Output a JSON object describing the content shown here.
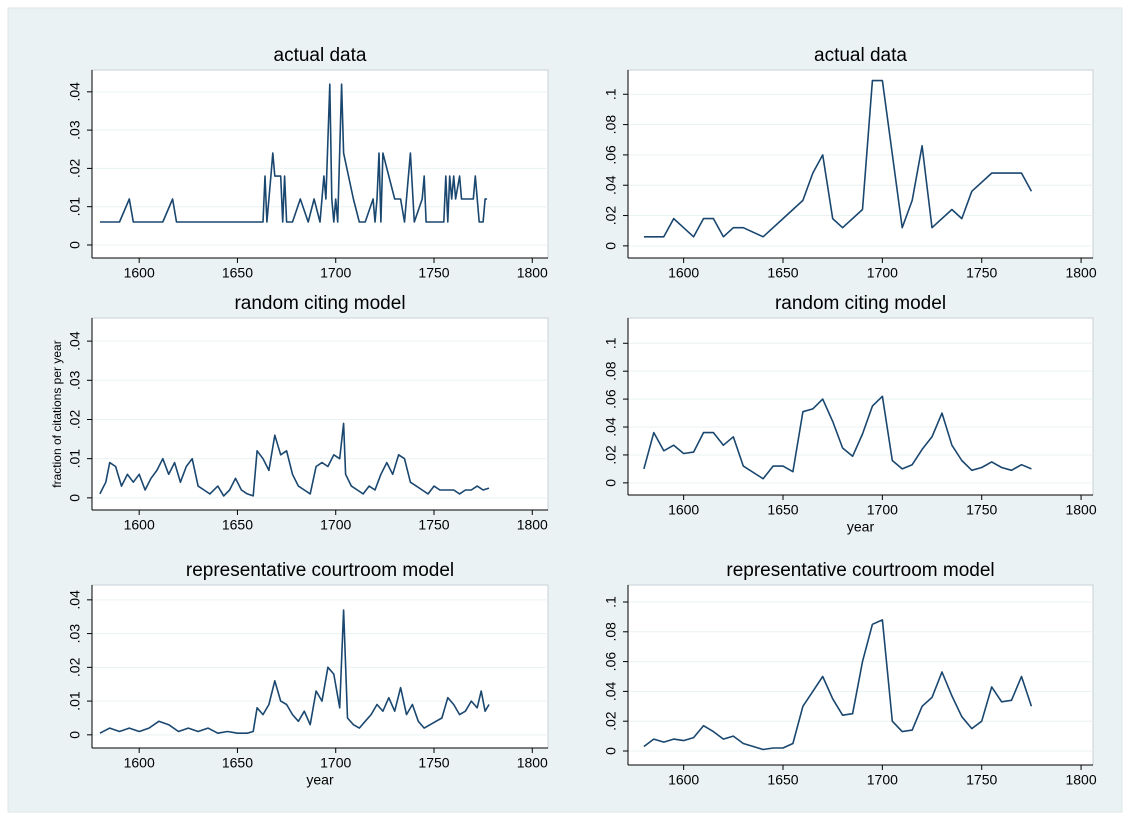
{
  "chart_data": [
    {
      "type": "line",
      "title": "actual data",
      "color": "#1a476f",
      "grid": true,
      "x": [
        1580,
        1590,
        1595,
        1597,
        1612,
        1617,
        1619,
        1663,
        1664,
        1665,
        1667,
        1668,
        1669,
        1672,
        1673,
        1674,
        1675,
        1678,
        1682,
        1686,
        1689,
        1692,
        1694,
        1695,
        1697,
        1698,
        1699,
        1700,
        1701,
        1703,
        1704,
        1709,
        1712,
        1715,
        1719,
        1720,
        1721,
        1722,
        1723,
        1724,
        1730,
        1733,
        1735,
        1738,
        1740,
        1744,
        1745,
        1746,
        1755,
        1756,
        1757,
        1758,
        1759,
        1760,
        1761,
        1763,
        1764,
        1770,
        1771,
        1773,
        1775,
        1776,
        1777
      ],
      "values": [
        0.006,
        0.006,
        0.012,
        0.006,
        0.006,
        0.012,
        0.006,
        0.006,
        0.018,
        0.006,
        0.018,
        0.024,
        0.018,
        0.018,
        0.006,
        0.018,
        0.006,
        0.006,
        0.012,
        0.006,
        0.012,
        0.006,
        0.018,
        0.012,
        0.042,
        0.012,
        0.006,
        0.012,
        0.006,
        0.042,
        0.024,
        0.012,
        0.006,
        0.006,
        0.012,
        0.006,
        0.012,
        0.024,
        0.006,
        0.024,
        0.012,
        0.012,
        0.006,
        0.024,
        0.006,
        0.012,
        0.018,
        0.006,
        0.006,
        0.018,
        0.006,
        0.018,
        0.012,
        0.018,
        0.012,
        0.018,
        0.012,
        0.012,
        0.018,
        0.006,
        0.006,
        0.012,
        0.012
      ],
      "xlim": [
        1576,
        1808
      ],
      "ylim": [
        -0.0034,
        0.0457
      ],
      "xticks": [
        1600,
        1650,
        1700,
        1750,
        1800
      ],
      "yticks": [
        0,
        {
          "value": 0.01,
          "label": ".01"
        },
        {
          "value": 0.02,
          "label": ".02"
        },
        {
          "value": 0.03,
          "label": ".03"
        },
        {
          "value": 0.04,
          "label": ".04"
        }
      ]
    },
    {
      "type": "line",
      "title": "actual data",
      "color": "#1a476f",
      "grid": true,
      "x": [
        1580,
        1585,
        1590,
        1595,
        1600,
        1605,
        1610,
        1615,
        1620,
        1625,
        1630,
        1640,
        1650,
        1660,
        1665,
        1670,
        1675,
        1680,
        1690,
        1695,
        1700,
        1710,
        1715,
        1720,
        1725,
        1735,
        1740,
        1745,
        1755,
        1770,
        1775
      ],
      "values": [
        0.006,
        0.006,
        0.006,
        0.018,
        0.012,
        0.006,
        0.018,
        0.018,
        0.006,
        0.012,
        0.012,
        0.006,
        0.018,
        0.03,
        0.048,
        0.06,
        0.018,
        0.012,
        0.024,
        0.109,
        0.109,
        0.012,
        0.03,
        0.066,
        0.012,
        0.024,
        0.018,
        0.036,
        0.048,
        0.048,
        0.036
      ],
      "xlim": [
        1572,
        1806
      ],
      "ylim": [
        -0.008,
        0.116
      ],
      "xticks": [
        1600,
        1650,
        1700,
        1750,
        1800
      ],
      "yticks": [
        0,
        {
          "value": 0.02,
          "label": ".02"
        },
        {
          "value": 0.04,
          "label": ".04"
        },
        {
          "value": 0.06,
          "label": ".06"
        },
        {
          "value": 0.08,
          "label": ".08"
        },
        {
          "value": 0.1,
          "label": ".1"
        }
      ]
    },
    {
      "type": "line",
      "title": "random citing model",
      "ylabel": "fraction of citations per year",
      "color": "#1a476f",
      "grid": true,
      "x": [
        1580,
        1583,
        1585,
        1588,
        1591,
        1594,
        1597,
        1600,
        1603,
        1606,
        1609,
        1612,
        1615,
        1618,
        1621,
        1624,
        1627,
        1630,
        1633,
        1636,
        1640,
        1643,
        1646,
        1649,
        1652,
        1655,
        1658,
        1660,
        1663,
        1666,
        1669,
        1672,
        1675,
        1678,
        1681,
        1684,
        1687,
        1690,
        1693,
        1696,
        1699,
        1702,
        1704,
        1705,
        1708,
        1711,
        1714,
        1717,
        1720,
        1723,
        1726,
        1729,
        1732,
        1735,
        1738,
        1741,
        1744,
        1747,
        1750,
        1753,
        1756,
        1760,
        1763,
        1766,
        1769,
        1772,
        1775,
        1778
      ],
      "values": [
        0.001,
        0.004,
        0.009,
        0.008,
        0.003,
        0.006,
        0.004,
        0.006,
        0.002,
        0.005,
        0.007,
        0.01,
        0.006,
        0.009,
        0.004,
        0.008,
        0.01,
        0.003,
        0.002,
        0.001,
        0.003,
        0.0005,
        0.002,
        0.005,
        0.002,
        0.001,
        0.0005,
        0.012,
        0.01,
        0.007,
        0.016,
        0.011,
        0.012,
        0.006,
        0.003,
        0.002,
        0.001,
        0.008,
        0.009,
        0.008,
        0.011,
        0.01,
        0.019,
        0.006,
        0.003,
        0.002,
        0.001,
        0.003,
        0.002,
        0.006,
        0.009,
        0.006,
        0.011,
        0.01,
        0.004,
        0.003,
        0.002,
        0.001,
        0.003,
        0.002,
        0.002,
        0.002,
        0.001,
        0.002,
        0.002,
        0.003,
        0.002,
        0.0025
      ],
      "xlim": [
        1576,
        1808
      ],
      "ylim": [
        -0.0031,
        0.0459
      ],
      "xticks": [
        1600,
        1650,
        1700,
        1750,
        1800
      ],
      "yticks": [
        0,
        {
          "value": 0.01,
          "label": ".01"
        },
        {
          "value": 0.02,
          "label": ".02"
        },
        {
          "value": 0.03,
          "label": ".03"
        },
        {
          "value": 0.04,
          "label": ".04"
        }
      ]
    },
    {
      "type": "line",
      "title": "random citing model",
      "xlabel": "year",
      "color": "#1a476f",
      "grid": true,
      "x": [
        1580,
        1585,
        1590,
        1595,
        1600,
        1605,
        1610,
        1615,
        1620,
        1625,
        1630,
        1640,
        1645,
        1650,
        1655,
        1660,
        1665,
        1670,
        1675,
        1680,
        1685,
        1690,
        1695,
        1700,
        1705,
        1710,
        1715,
        1720,
        1725,
        1730,
        1735,
        1740,
        1745,
        1750,
        1755,
        1760,
        1765,
        1770,
        1775
      ],
      "values": [
        0.01,
        0.036,
        0.023,
        0.027,
        0.021,
        0.022,
        0.036,
        0.036,
        0.027,
        0.033,
        0.012,
        0.003,
        0.012,
        0.012,
        0.008,
        0.051,
        0.053,
        0.06,
        0.044,
        0.025,
        0.019,
        0.035,
        0.055,
        0.062,
        0.016,
        0.01,
        0.013,
        0.024,
        0.033,
        0.05,
        0.027,
        0.016,
        0.009,
        0.011,
        0.015,
        0.011,
        0.009,
        0.013,
        0.01
      ],
      "xlim": [
        1572,
        1806
      ],
      "ylim": [
        -0.0087,
        0.1181
      ],
      "xticks": [
        1600,
        1650,
        1700,
        1750,
        1800
      ],
      "yticks": [
        0,
        {
          "value": 0.02,
          "label": ".02"
        },
        {
          "value": 0.04,
          "label": ".04"
        },
        {
          "value": 0.06,
          "label": ".06"
        },
        {
          "value": 0.08,
          "label": ".08"
        },
        {
          "value": 0.1,
          "label": ".1"
        }
      ]
    },
    {
      "type": "line",
      "title": "representative courtroom model",
      "xlabel": "year",
      "color": "#1a476f",
      "grid": true,
      "x": [
        1580,
        1585,
        1590,
        1595,
        1600,
        1605,
        1610,
        1615,
        1620,
        1625,
        1630,
        1635,
        1640,
        1645,
        1650,
        1655,
        1658,
        1660,
        1663,
        1666,
        1669,
        1672,
        1675,
        1678,
        1681,
        1684,
        1687,
        1690,
        1693,
        1696,
        1699,
        1702,
        1704,
        1706,
        1709,
        1712,
        1715,
        1718,
        1721,
        1724,
        1727,
        1730,
        1733,
        1736,
        1739,
        1742,
        1745,
        1748,
        1751,
        1754,
        1757,
        1760,
        1763,
        1766,
        1769,
        1772,
        1774,
        1776,
        1778
      ],
      "values": [
        0.0005,
        0.002,
        0.001,
        0.002,
        0.001,
        0.002,
        0.004,
        0.003,
        0.001,
        0.002,
        0.001,
        0.002,
        0.0005,
        0.001,
        0.0005,
        0.0005,
        0.001,
        0.008,
        0.006,
        0.009,
        0.016,
        0.01,
        0.009,
        0.006,
        0.004,
        0.007,
        0.003,
        0.013,
        0.01,
        0.02,
        0.018,
        0.008,
        0.037,
        0.005,
        0.003,
        0.002,
        0.004,
        0.006,
        0.009,
        0.007,
        0.011,
        0.007,
        0.014,
        0.006,
        0.009,
        0.004,
        0.002,
        0.003,
        0.004,
        0.005,
        0.011,
        0.009,
        0.006,
        0.007,
        0.01,
        0.008,
        0.013,
        0.007,
        0.009
      ],
      "xlim": [
        1576,
        1808
      ],
      "ylim": [
        -0.0039,
        0.0444
      ],
      "xticks": [
        1600,
        1650,
        1700,
        1750,
        1800
      ],
      "yticks": [
        0,
        {
          "value": 0.01,
          "label": ".01"
        },
        {
          "value": 0.02,
          "label": ".02"
        },
        {
          "value": 0.03,
          "label": ".03"
        },
        {
          "value": 0.04,
          "label": ".04"
        }
      ]
    },
    {
      "type": "line",
      "title": "representative courtroom model",
      "color": "#1a476f",
      "grid": true,
      "x": [
        1580,
        1585,
        1590,
        1595,
        1600,
        1605,
        1610,
        1615,
        1620,
        1625,
        1630,
        1640,
        1645,
        1650,
        1655,
        1660,
        1665,
        1670,
        1675,
        1680,
        1685,
        1690,
        1695,
        1700,
        1705,
        1710,
        1715,
        1720,
        1725,
        1730,
        1735,
        1740,
        1745,
        1750,
        1755,
        1760,
        1765,
        1770,
        1775
      ],
      "values": [
        0.003,
        0.008,
        0.006,
        0.008,
        0.007,
        0.009,
        0.017,
        0.013,
        0.008,
        0.01,
        0.005,
        0.001,
        0.002,
        0.002,
        0.005,
        0.03,
        0.04,
        0.05,
        0.035,
        0.024,
        0.025,
        0.06,
        0.085,
        0.088,
        0.02,
        0.013,
        0.014,
        0.03,
        0.036,
        0.053,
        0.037,
        0.023,
        0.015,
        0.02,
        0.043,
        0.033,
        0.034,
        0.05,
        0.03
      ],
      "xlim": [
        1572,
        1806
      ],
      "ylim": [
        -0.0094,
        0.1114
      ],
      "xticks": [
        1600,
        1650,
        1700,
        1750,
        1800
      ],
      "yticks": [
        0,
        {
          "value": 0.02,
          "label": ".02"
        },
        {
          "value": 0.04,
          "label": ".04"
        },
        {
          "value": 0.06,
          "label": ".06"
        },
        {
          "value": 0.08,
          "label": ".08"
        },
        {
          "value": 0.1,
          "label": ".1"
        }
      ]
    }
  ]
}
